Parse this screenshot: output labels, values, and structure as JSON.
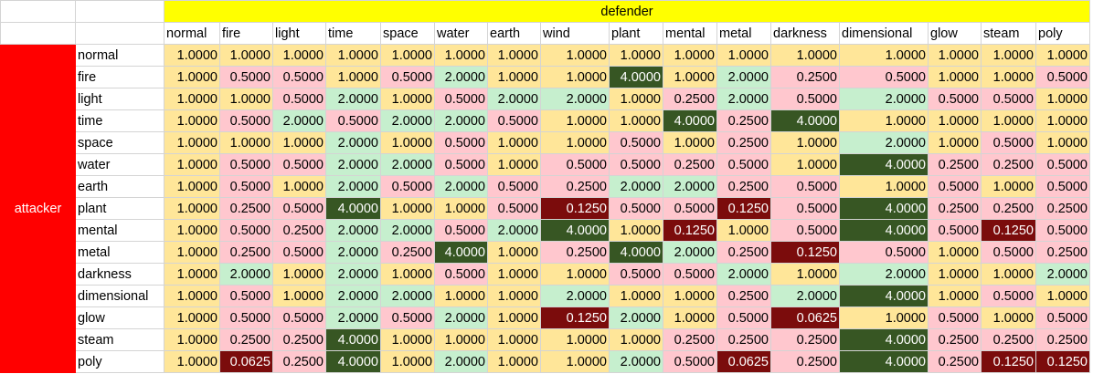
{
  "header": {
    "defender_label": "defender",
    "attacker_label": "attacker"
  },
  "columns": [
    "normal",
    "fire",
    "light",
    "time",
    "space",
    "water",
    "earth",
    "wind",
    "plant",
    "mental",
    "metal",
    "darkness",
    "dimensional",
    "glow",
    "steam",
    "poly"
  ],
  "rows": [
    {
      "label": "normal",
      "values": [
        "1.0000",
        "1.0000",
        "1.0000",
        "1.0000",
        "1.0000",
        "1.0000",
        "1.0000",
        "1.0000",
        "1.0000",
        "1.0000",
        "1.0000",
        "1.0000",
        "1.0000",
        "1.0000",
        "1.0000",
        "1.0000"
      ]
    },
    {
      "label": "fire",
      "values": [
        "1.0000",
        "0.5000",
        "0.5000",
        "1.0000",
        "0.5000",
        "2.0000",
        "1.0000",
        "1.0000",
        "4.0000",
        "1.0000",
        "2.0000",
        "0.2500",
        "0.5000",
        "1.0000",
        "1.0000",
        "0.5000"
      ]
    },
    {
      "label": "light",
      "values": [
        "1.0000",
        "1.0000",
        "0.5000",
        "2.0000",
        "1.0000",
        "0.5000",
        "2.0000",
        "2.0000",
        "1.0000",
        "0.2500",
        "2.0000",
        "0.5000",
        "2.0000",
        "0.5000",
        "0.5000",
        "1.0000"
      ]
    },
    {
      "label": "time",
      "values": [
        "1.0000",
        "0.5000",
        "2.0000",
        "0.5000",
        "2.0000",
        "2.0000",
        "0.5000",
        "1.0000",
        "1.0000",
        "4.0000",
        "0.2500",
        "4.0000",
        "1.0000",
        "1.0000",
        "1.0000",
        "1.0000"
      ]
    },
    {
      "label": "space",
      "values": [
        "1.0000",
        "1.0000",
        "1.0000",
        "2.0000",
        "1.0000",
        "0.5000",
        "1.0000",
        "1.0000",
        "0.5000",
        "1.0000",
        "0.2500",
        "1.0000",
        "2.0000",
        "1.0000",
        "0.5000",
        "1.0000"
      ]
    },
    {
      "label": "water",
      "values": [
        "1.0000",
        "0.5000",
        "0.5000",
        "2.0000",
        "2.0000",
        "0.5000",
        "1.0000",
        "0.5000",
        "0.5000",
        "0.2500",
        "0.5000",
        "1.0000",
        "4.0000",
        "0.2500",
        "0.2500",
        "0.5000"
      ]
    },
    {
      "label": "earth",
      "values": [
        "1.0000",
        "0.5000",
        "1.0000",
        "2.0000",
        "0.5000",
        "2.0000",
        "0.5000",
        "0.2500",
        "2.0000",
        "2.0000",
        "0.2500",
        "0.5000",
        "1.0000",
        "0.5000",
        "1.0000",
        "0.5000"
      ]
    },
    {
      "label": "plant",
      "values": [
        "1.0000",
        "0.2500",
        "0.5000",
        "4.0000",
        "1.0000",
        "1.0000",
        "0.5000",
        "0.1250",
        "0.5000",
        "0.5000",
        "0.1250",
        "0.5000",
        "4.0000",
        "0.2500",
        "0.2500",
        "0.2500"
      ]
    },
    {
      "label": "mental",
      "values": [
        "1.0000",
        "0.5000",
        "0.2500",
        "2.0000",
        "2.0000",
        "0.5000",
        "2.0000",
        "4.0000",
        "1.0000",
        "0.1250",
        "1.0000",
        "0.5000",
        "4.0000",
        "0.5000",
        "0.1250",
        "0.5000"
      ]
    },
    {
      "label": "metal",
      "values": [
        "1.0000",
        "0.2500",
        "0.5000",
        "2.0000",
        "0.2500",
        "4.0000",
        "1.0000",
        "0.2500",
        "4.0000",
        "2.0000",
        "0.2500",
        "0.1250",
        "0.5000",
        "1.0000",
        "0.5000",
        "0.2500"
      ]
    },
    {
      "label": "darkness",
      "values": [
        "1.0000",
        "2.0000",
        "1.0000",
        "2.0000",
        "1.0000",
        "0.5000",
        "1.0000",
        "1.0000",
        "0.5000",
        "0.5000",
        "2.0000",
        "1.0000",
        "2.0000",
        "1.0000",
        "1.0000",
        "2.0000"
      ]
    },
    {
      "label": "dimensional",
      "values": [
        "1.0000",
        "0.5000",
        "1.0000",
        "2.0000",
        "2.0000",
        "1.0000",
        "1.0000",
        "2.0000",
        "1.0000",
        "1.0000",
        "0.2500",
        "2.0000",
        "4.0000",
        "1.0000",
        "0.5000",
        "1.0000"
      ]
    },
    {
      "label": "glow",
      "values": [
        "1.0000",
        "0.5000",
        "0.5000",
        "2.0000",
        "0.5000",
        "2.0000",
        "1.0000",
        "0.1250",
        "2.0000",
        "1.0000",
        "0.5000",
        "0.0625",
        "1.0000",
        "0.5000",
        "1.0000",
        "0.5000"
      ]
    },
    {
      "label": "steam",
      "values": [
        "1.0000",
        "0.2500",
        "0.2500",
        "4.0000",
        "1.0000",
        "1.0000",
        "1.0000",
        "1.0000",
        "1.0000",
        "0.2500",
        "0.2500",
        "0.2500",
        "4.0000",
        "0.2500",
        "0.2500",
        "0.2500"
      ]
    },
    {
      "label": "poly",
      "values": [
        "1.0000",
        "0.0625",
        "0.2500",
        "4.0000",
        "1.0000",
        "2.0000",
        "1.0000",
        "1.0000",
        "2.0000",
        "0.5000",
        "0.0625",
        "0.2500",
        "4.0000",
        "0.2500",
        "0.1250",
        "0.1250"
      ]
    }
  ],
  "colors": {
    "header_fill": "#ffff00",
    "attacker_fill": "#ff0000",
    "neutral_fill": "#ffe699",
    "weak_fill": "#ffc7ce",
    "strong_fill": "#c6efce",
    "very_strong_fill": "#375623",
    "very_weak_fill": "#7b0c0c"
  }
}
